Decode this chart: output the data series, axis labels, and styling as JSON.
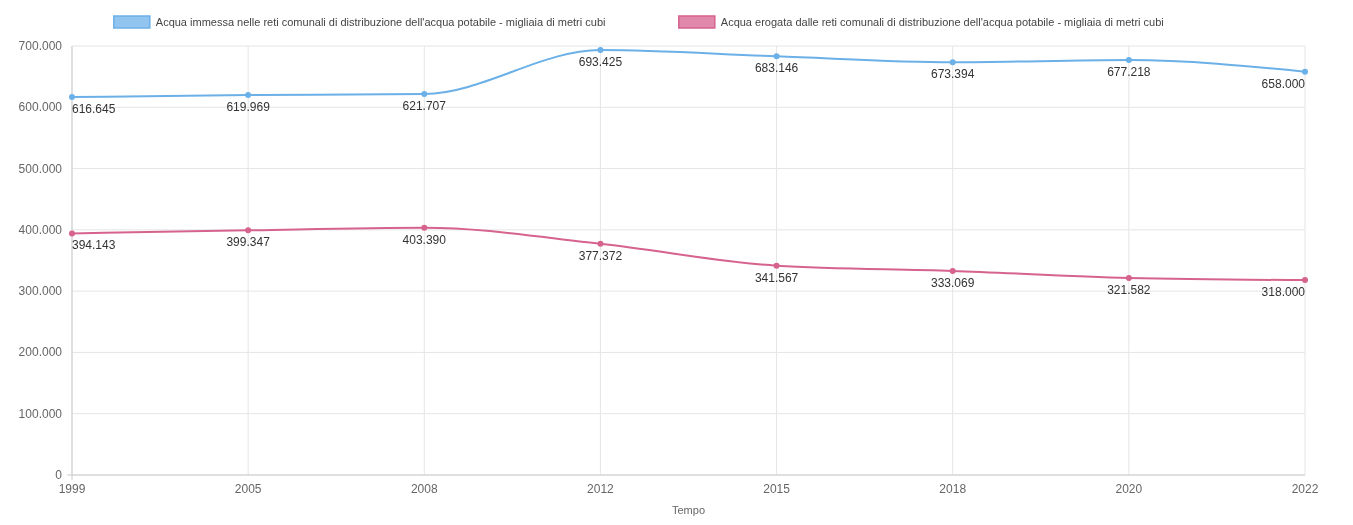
{
  "chart_data": {
    "type": "line",
    "xlabel": "Tempo",
    "categories": [
      "1999",
      "2005",
      "2008",
      "2012",
      "2015",
      "2018",
      "2020",
      "2022"
    ],
    "series": [
      {
        "name": "Acqua immessa nelle reti comunali di distribuzione dell'acqua potabile - migliaia di metri cubi",
        "color": "#6cb0e8",
        "values": [
          616645,
          619969,
          621707,
          693425,
          683146,
          673394,
          677218,
          658000
        ],
        "value_labels": [
          "616.645",
          "619.969",
          "621.707",
          "693.425",
          "683.146",
          "673.394",
          "677.218",
          "658.000"
        ]
      },
      {
        "name": "Acqua erogata dalle reti comunali di distribuzione dell'acqua potabile  - migliaia di metri cubi",
        "color": "#d6628e",
        "values": [
          394143,
          399347,
          403390,
          377372,
          341567,
          333069,
          321582,
          318000
        ],
        "value_labels": [
          "394.143",
          "399.347",
          "403.390",
          "377.372",
          "341.567",
          "333.069",
          "321.582",
          "318.000"
        ]
      }
    ],
    "ylim": [
      0,
      700000
    ],
    "yticks": [
      0,
      {
        "value": 100000,
        "label": "100.000"
      },
      {
        "value": 200000,
        "label": "200.000"
      },
      {
        "value": 300000,
        "label": "300.000"
      },
      {
        "value": 400000,
        "label": "400.000"
      },
      {
        "value": 500000,
        "label": "500.000"
      },
      {
        "value": 600000,
        "label": "600.000"
      },
      {
        "value": 700000,
        "label": "700.000"
      }
    ],
    "grid": true,
    "legend": "top",
    "marker": "circle"
  }
}
